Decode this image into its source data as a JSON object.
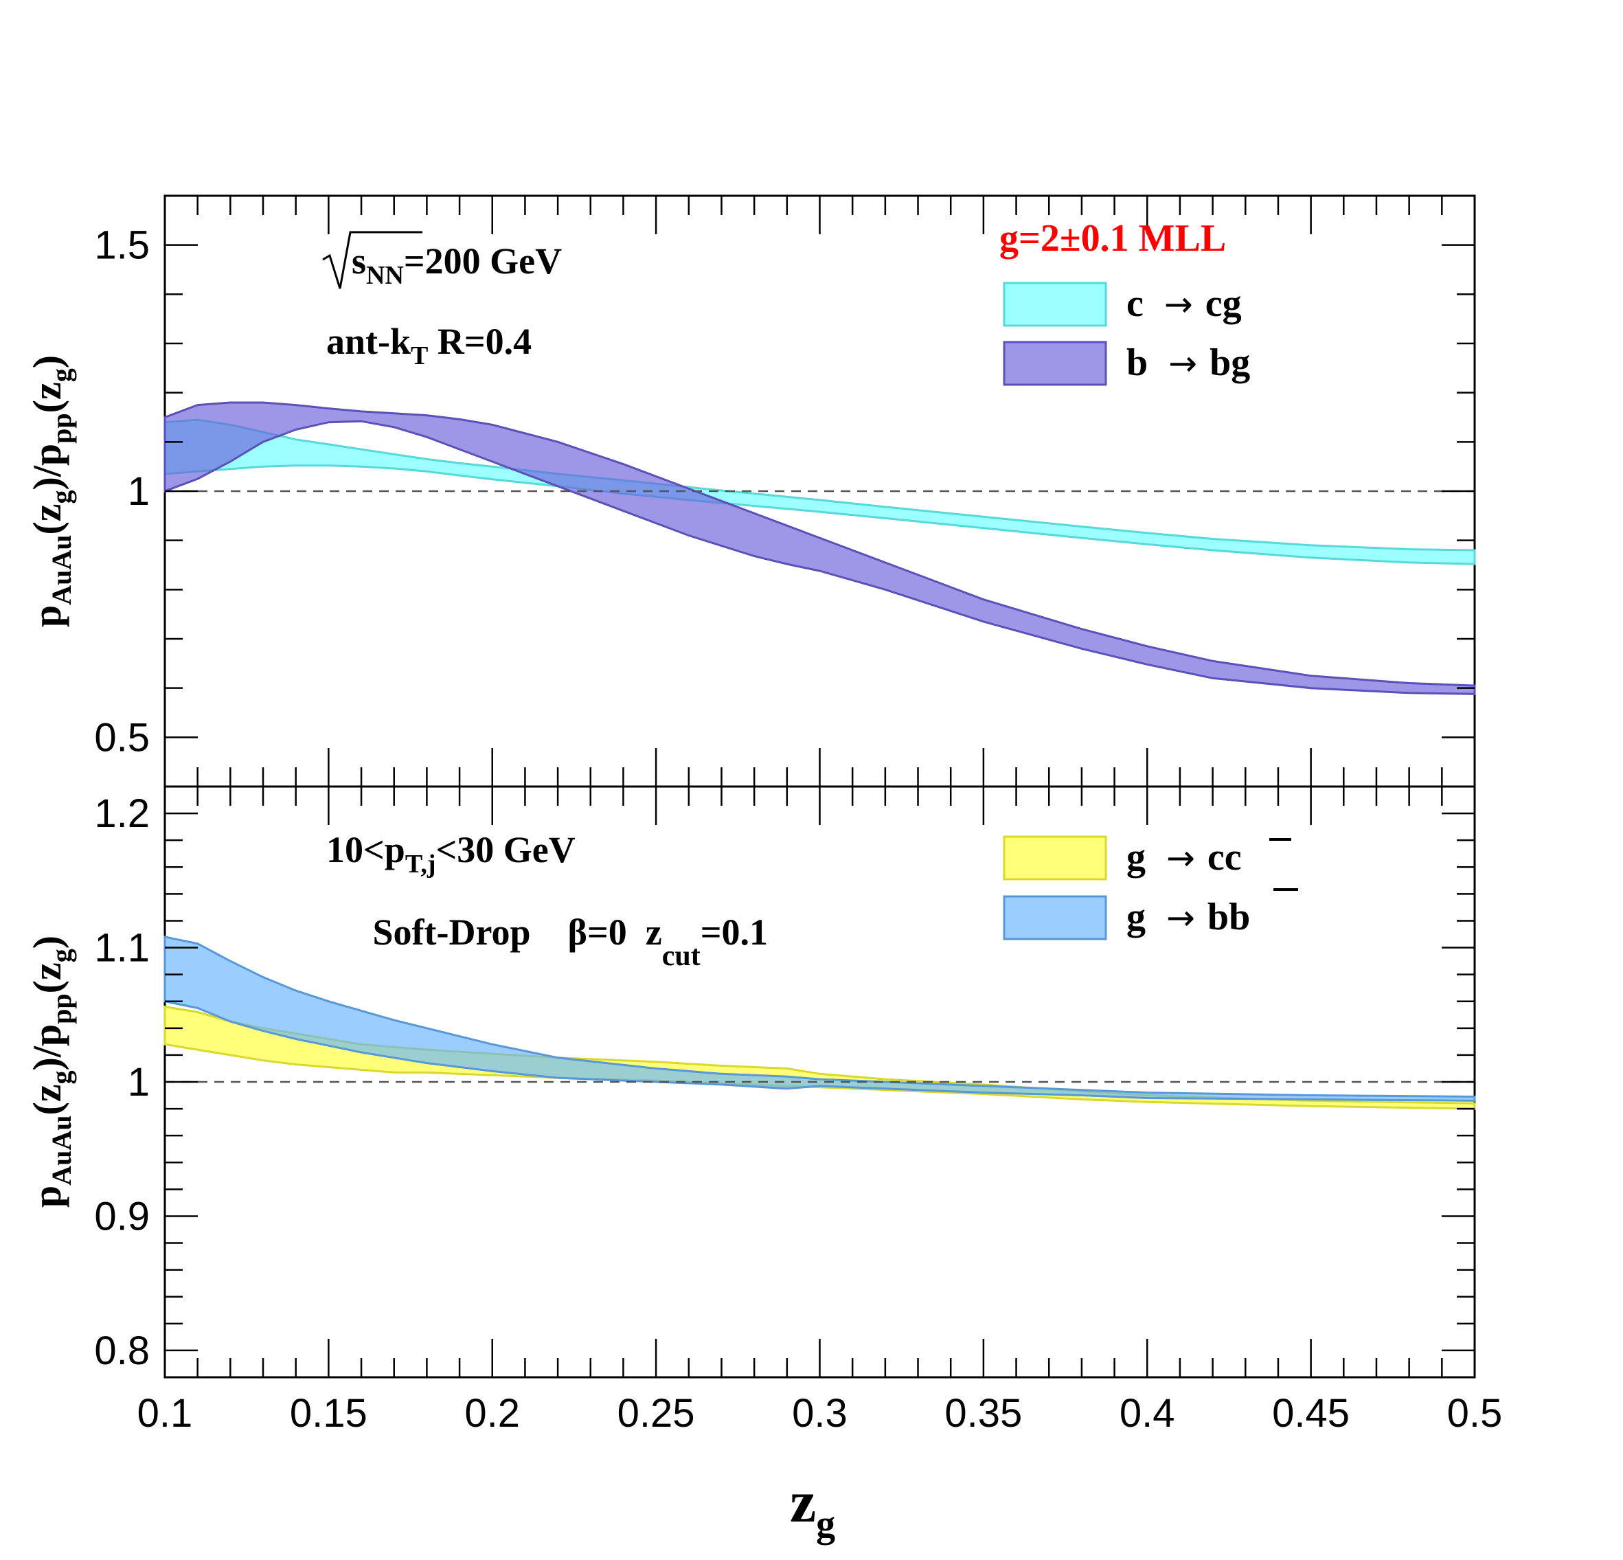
{
  "chart_data": [
    {
      "type": "area",
      "panel": "top",
      "ylabel_main": "p",
      "ylabel_sub": "AuAu",
      "ylabel_rest": "(z",
      "ylabel_sub2": "g",
      "ylabel_rest2": ")/p",
      "ylabel_sub3": "pp",
      "ylabel_rest3": "(z",
      "ylabel_sub4": "g",
      "ylabel_rest4": ")",
      "ylim": [
        0.4,
        1.6
      ],
      "xlim": [
        0.1,
        0.5
      ],
      "yticks": [
        0.5,
        1,
        1.5
      ],
      "ytick_labels": [
        "0.5",
        "1",
        "1.5"
      ],
      "reference_line": 1.0,
      "annotations": {
        "energy_pre": "s",
        "energy_sub": "NN",
        "energy_post": "=200 GeV",
        "algo_pre": "ant-k",
        "algo_sub": "T",
        "algo_post": " R=0.4",
        "legend_title": "g=2±0.1  MLL"
      },
      "series": [
        {
          "name_pre": "c",
          "name_post": "cg",
          "color": "#66ffff",
          "x": [
            0.1,
            0.11,
            0.12,
            0.13,
            0.14,
            0.15,
            0.16,
            0.17,
            0.18,
            0.19,
            0.2,
            0.22,
            0.24,
            0.26,
            0.28,
            0.3,
            0.32,
            0.35,
            0.38,
            0.4,
            0.42,
            0.45,
            0.48,
            0.5
          ],
          "upper": [
            1.14,
            1.145,
            1.135,
            1.12,
            1.105,
            1.095,
            1.085,
            1.075,
            1.065,
            1.057,
            1.05,
            1.035,
            1.022,
            1.008,
            0.995,
            0.982,
            0.968,
            0.948,
            0.928,
            0.915,
            0.903,
            0.89,
            0.882,
            0.88
          ],
          "lower": [
            1.035,
            1.04,
            1.045,
            1.05,
            1.052,
            1.052,
            1.05,
            1.046,
            1.04,
            1.032,
            1.024,
            1.01,
            0.995,
            0.982,
            0.97,
            0.958,
            0.945,
            0.925,
            0.905,
            0.892,
            0.88,
            0.865,
            0.855,
            0.852
          ]
        },
        {
          "name_pre": "b",
          "name_post": "bg",
          "color": "#6a5fdb",
          "x": [
            0.1,
            0.11,
            0.12,
            0.13,
            0.14,
            0.15,
            0.16,
            0.17,
            0.18,
            0.19,
            0.2,
            0.22,
            0.24,
            0.26,
            0.28,
            0.29,
            0.3,
            0.32,
            0.35,
            0.38,
            0.4,
            0.42,
            0.45,
            0.48,
            0.5
          ],
          "upper": [
            1.15,
            1.175,
            1.18,
            1.18,
            1.175,
            1.168,
            1.162,
            1.158,
            1.154,
            1.146,
            1.135,
            1.1,
            1.055,
            1.005,
            0.955,
            0.93,
            0.905,
            0.855,
            0.78,
            0.72,
            0.685,
            0.655,
            0.625,
            0.61,
            0.605
          ],
          "lower": [
            1.0,
            1.025,
            1.06,
            1.1,
            1.125,
            1.14,
            1.142,
            1.13,
            1.11,
            1.085,
            1.06,
            1.01,
            0.96,
            0.91,
            0.868,
            0.852,
            0.838,
            0.8,
            0.735,
            0.68,
            0.648,
            0.62,
            0.6,
            0.59,
            0.588
          ]
        }
      ]
    },
    {
      "type": "area",
      "panel": "bottom",
      "xlabel_main": "z",
      "xlabel_sub": "g",
      "ylabel_main": "p",
      "ylabel_sub": "AuAu",
      "ylabel_rest": "(z",
      "ylabel_sub2": "g",
      "ylabel_rest2": ")/p",
      "ylabel_sub3": "pp",
      "ylabel_rest3": "(z",
      "ylabel_sub4": "g",
      "ylabel_rest4": ")",
      "ylim": [
        0.78,
        1.22
      ],
      "xlim": [
        0.1,
        0.5
      ],
      "yticks": [
        0.8,
        0.9,
        1.0,
        1.1,
        1.2
      ],
      "ytick_labels": [
        "0.8",
        "0.9",
        "1",
        "1.1",
        "1.2"
      ],
      "xticks": [
        0.1,
        0.15,
        0.2,
        0.25,
        0.3,
        0.35,
        0.4,
        0.45,
        0.5
      ],
      "xtick_labels": [
        "0.1",
        "0.15",
        "0.2",
        "0.25",
        "0.3",
        "0.35",
        "0.4",
        "0.45",
        "0.5"
      ],
      "reference_line": 1.0,
      "annotations": {
        "pt_pre": "10<p",
        "pt_sub": "T,j",
        "pt_post": "<30 GeV",
        "sd_pre": "Soft-Drop    β=0  z",
        "sd_sub": "cut",
        "sd_post": "=0.1"
      },
      "series": [
        {
          "name_pre": "g",
          "name_post_a": "c",
          "name_post_b": "c",
          "color": "#ffff33",
          "x": [
            0.1,
            0.11,
            0.12,
            0.13,
            0.14,
            0.15,
            0.16,
            0.17,
            0.18,
            0.2,
            0.22,
            0.25,
            0.27,
            0.29,
            0.3,
            0.32,
            0.35,
            0.38,
            0.4,
            0.45,
            0.5
          ],
          "upper": [
            1.056,
            1.052,
            1.045,
            1.04,
            1.036,
            1.032,
            1.028,
            1.026,
            1.024,
            1.021,
            1.018,
            1.015,
            1.012,
            1.01,
            1.006,
            1.002,
            0.998,
            0.993,
            0.99,
            0.986,
            0.984
          ],
          "lower": [
            1.028,
            1.024,
            1.02,
            1.016,
            1.013,
            1.011,
            1.009,
            1.007,
            1.007,
            1.005,
            1.003,
            1.001,
            0.999,
            0.997,
            0.996,
            0.994,
            0.991,
            0.987,
            0.985,
            0.982,
            0.98
          ]
        },
        {
          "name_pre": "g",
          "name_post_a": "b",
          "name_post_b": "b",
          "color": "#66b3ff",
          "x": [
            0.1,
            0.11,
            0.12,
            0.13,
            0.14,
            0.15,
            0.16,
            0.17,
            0.18,
            0.2,
            0.22,
            0.25,
            0.27,
            0.29,
            0.3,
            0.32,
            0.35,
            0.38,
            0.4,
            0.45,
            0.5
          ],
          "upper": [
            1.108,
            1.103,
            1.09,
            1.078,
            1.068,
            1.06,
            1.053,
            1.046,
            1.04,
            1.028,
            1.018,
            1.01,
            1.006,
            1.004,
            1.002,
            1.0,
            0.997,
            0.994,
            0.992,
            0.99,
            0.989
          ],
          "lower": [
            1.06,
            1.055,
            1.045,
            1.038,
            1.032,
            1.027,
            1.022,
            1.018,
            1.014,
            1.008,
            1.003,
            1.0,
            0.998,
            0.995,
            0.997,
            0.995,
            0.992,
            0.99,
            0.988,
            0.987,
            0.986
          ]
        }
      ]
    }
  ]
}
